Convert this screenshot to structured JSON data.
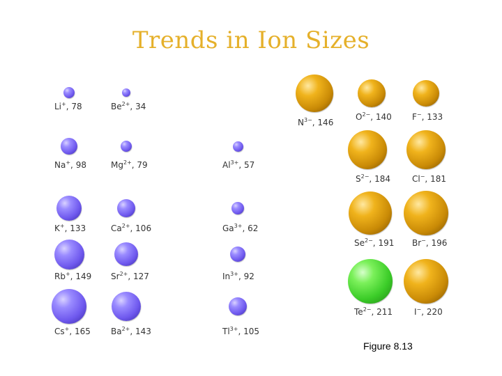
{
  "title": "Trends in Ion Sizes",
  "caption": "Figure 8.13",
  "colors": {
    "title": "#e5b02a",
    "cation": "#7a66f0",
    "anion": "#d99a10",
    "highlight": "#44cc30"
  },
  "ions": [
    {
      "id": "li",
      "symbol": "Li",
      "charge": "+",
      "radius": "78",
      "kind": "cation"
    },
    {
      "id": "be",
      "symbol": "Be",
      "charge": "2+",
      "radius": "34",
      "kind": "cation"
    },
    {
      "id": "na",
      "symbol": "Na",
      "charge": "+",
      "radius": "98",
      "kind": "cation"
    },
    {
      "id": "mg",
      "symbol": "Mg",
      "charge": "2+",
      "radius": "79",
      "kind": "cation"
    },
    {
      "id": "al",
      "symbol": "Al",
      "charge": "3+",
      "radius": "57",
      "kind": "cation"
    },
    {
      "id": "k",
      "symbol": "K",
      "charge": "+",
      "radius": "133",
      "kind": "cation"
    },
    {
      "id": "ca",
      "symbol": "Ca",
      "charge": "2+",
      "radius": "106",
      "kind": "cation"
    },
    {
      "id": "ga",
      "symbol": "Ga",
      "charge": "3+",
      "radius": "62",
      "kind": "cation"
    },
    {
      "id": "rb",
      "symbol": "Rb",
      "charge": "+",
      "radius": "149",
      "kind": "cation"
    },
    {
      "id": "sr",
      "symbol": "Sr",
      "charge": "2+",
      "radius": "127",
      "kind": "cation"
    },
    {
      "id": "in",
      "symbol": "In",
      "charge": "3+",
      "radius": "92",
      "kind": "cation"
    },
    {
      "id": "cs",
      "symbol": "Cs",
      "charge": "+",
      "radius": "165",
      "kind": "cation"
    },
    {
      "id": "ba",
      "symbol": "Ba",
      "charge": "2+",
      "radius": "143",
      "kind": "cation"
    },
    {
      "id": "tl",
      "symbol": "Tl",
      "charge": "3+",
      "radius": "105",
      "kind": "cation"
    },
    {
      "id": "n",
      "symbol": "N",
      "charge": "3−",
      "radius": "146",
      "kind": "anion"
    },
    {
      "id": "o",
      "symbol": "O",
      "charge": "2−",
      "radius": "140",
      "kind": "anion"
    },
    {
      "id": "f",
      "symbol": "F",
      "charge": "−",
      "radius": "133",
      "kind": "anion"
    },
    {
      "id": "s",
      "symbol": "S",
      "charge": "2−",
      "radius": "184",
      "kind": "anion"
    },
    {
      "id": "cl",
      "symbol": "Cl",
      "charge": "−",
      "radius": "181",
      "kind": "anion"
    },
    {
      "id": "se",
      "symbol": "Se",
      "charge": "2−",
      "radius": "191",
      "kind": "anion"
    },
    {
      "id": "br",
      "symbol": "Br",
      "charge": "−",
      "radius": "196",
      "kind": "anion"
    },
    {
      "id": "te",
      "symbol": "Te",
      "charge": "2−",
      "radius": "211",
      "kind": "highlight"
    },
    {
      "id": "i",
      "symbol": "I",
      "charge": "−",
      "radius": "220",
      "kind": "anion"
    }
  ]
}
